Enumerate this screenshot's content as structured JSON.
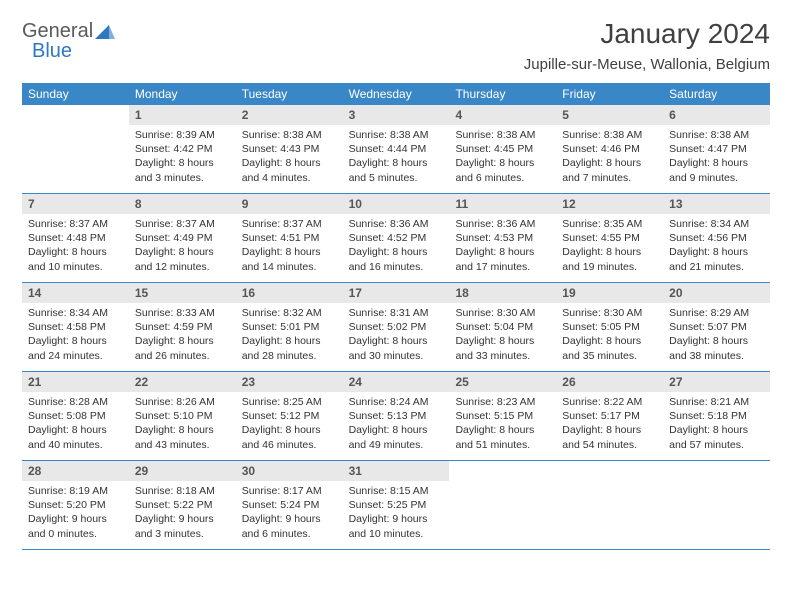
{
  "logo": {
    "part1": "General",
    "part2": "Blue"
  },
  "title": "January 2024",
  "location": "Jupille-sur-Meuse, Wallonia, Belgium",
  "colors": {
    "header_bg": "#3a87c7",
    "header_text": "#ffffff",
    "daynum_bg": "#e8e8e8",
    "daynum_text": "#555555",
    "body_text": "#333333",
    "logo_gray": "#5a5a5a",
    "logo_blue": "#2e78bd",
    "border": "#3a87c7"
  },
  "weekdays": [
    "Sunday",
    "Monday",
    "Tuesday",
    "Wednesday",
    "Thursday",
    "Friday",
    "Saturday"
  ],
  "weeks": [
    [
      {
        "num": "",
        "sunrise": "",
        "sunset": "",
        "daylight": ""
      },
      {
        "num": "1",
        "sunrise": "Sunrise: 8:39 AM",
        "sunset": "Sunset: 4:42 PM",
        "daylight": "Daylight: 8 hours and 3 minutes."
      },
      {
        "num": "2",
        "sunrise": "Sunrise: 8:38 AM",
        "sunset": "Sunset: 4:43 PM",
        "daylight": "Daylight: 8 hours and 4 minutes."
      },
      {
        "num": "3",
        "sunrise": "Sunrise: 8:38 AM",
        "sunset": "Sunset: 4:44 PM",
        "daylight": "Daylight: 8 hours and 5 minutes."
      },
      {
        "num": "4",
        "sunrise": "Sunrise: 8:38 AM",
        "sunset": "Sunset: 4:45 PM",
        "daylight": "Daylight: 8 hours and 6 minutes."
      },
      {
        "num": "5",
        "sunrise": "Sunrise: 8:38 AM",
        "sunset": "Sunset: 4:46 PM",
        "daylight": "Daylight: 8 hours and 7 minutes."
      },
      {
        "num": "6",
        "sunrise": "Sunrise: 8:38 AM",
        "sunset": "Sunset: 4:47 PM",
        "daylight": "Daylight: 8 hours and 9 minutes."
      }
    ],
    [
      {
        "num": "7",
        "sunrise": "Sunrise: 8:37 AM",
        "sunset": "Sunset: 4:48 PM",
        "daylight": "Daylight: 8 hours and 10 minutes."
      },
      {
        "num": "8",
        "sunrise": "Sunrise: 8:37 AM",
        "sunset": "Sunset: 4:49 PM",
        "daylight": "Daylight: 8 hours and 12 minutes."
      },
      {
        "num": "9",
        "sunrise": "Sunrise: 8:37 AM",
        "sunset": "Sunset: 4:51 PM",
        "daylight": "Daylight: 8 hours and 14 minutes."
      },
      {
        "num": "10",
        "sunrise": "Sunrise: 8:36 AM",
        "sunset": "Sunset: 4:52 PM",
        "daylight": "Daylight: 8 hours and 16 minutes."
      },
      {
        "num": "11",
        "sunrise": "Sunrise: 8:36 AM",
        "sunset": "Sunset: 4:53 PM",
        "daylight": "Daylight: 8 hours and 17 minutes."
      },
      {
        "num": "12",
        "sunrise": "Sunrise: 8:35 AM",
        "sunset": "Sunset: 4:55 PM",
        "daylight": "Daylight: 8 hours and 19 minutes."
      },
      {
        "num": "13",
        "sunrise": "Sunrise: 8:34 AM",
        "sunset": "Sunset: 4:56 PM",
        "daylight": "Daylight: 8 hours and 21 minutes."
      }
    ],
    [
      {
        "num": "14",
        "sunrise": "Sunrise: 8:34 AM",
        "sunset": "Sunset: 4:58 PM",
        "daylight": "Daylight: 8 hours and 24 minutes."
      },
      {
        "num": "15",
        "sunrise": "Sunrise: 8:33 AM",
        "sunset": "Sunset: 4:59 PM",
        "daylight": "Daylight: 8 hours and 26 minutes."
      },
      {
        "num": "16",
        "sunrise": "Sunrise: 8:32 AM",
        "sunset": "Sunset: 5:01 PM",
        "daylight": "Daylight: 8 hours and 28 minutes."
      },
      {
        "num": "17",
        "sunrise": "Sunrise: 8:31 AM",
        "sunset": "Sunset: 5:02 PM",
        "daylight": "Daylight: 8 hours and 30 minutes."
      },
      {
        "num": "18",
        "sunrise": "Sunrise: 8:30 AM",
        "sunset": "Sunset: 5:04 PM",
        "daylight": "Daylight: 8 hours and 33 minutes."
      },
      {
        "num": "19",
        "sunrise": "Sunrise: 8:30 AM",
        "sunset": "Sunset: 5:05 PM",
        "daylight": "Daylight: 8 hours and 35 minutes."
      },
      {
        "num": "20",
        "sunrise": "Sunrise: 8:29 AM",
        "sunset": "Sunset: 5:07 PM",
        "daylight": "Daylight: 8 hours and 38 minutes."
      }
    ],
    [
      {
        "num": "21",
        "sunrise": "Sunrise: 8:28 AM",
        "sunset": "Sunset: 5:08 PM",
        "daylight": "Daylight: 8 hours and 40 minutes."
      },
      {
        "num": "22",
        "sunrise": "Sunrise: 8:26 AM",
        "sunset": "Sunset: 5:10 PM",
        "daylight": "Daylight: 8 hours and 43 minutes."
      },
      {
        "num": "23",
        "sunrise": "Sunrise: 8:25 AM",
        "sunset": "Sunset: 5:12 PM",
        "daylight": "Daylight: 8 hours and 46 minutes."
      },
      {
        "num": "24",
        "sunrise": "Sunrise: 8:24 AM",
        "sunset": "Sunset: 5:13 PM",
        "daylight": "Daylight: 8 hours and 49 minutes."
      },
      {
        "num": "25",
        "sunrise": "Sunrise: 8:23 AM",
        "sunset": "Sunset: 5:15 PM",
        "daylight": "Daylight: 8 hours and 51 minutes."
      },
      {
        "num": "26",
        "sunrise": "Sunrise: 8:22 AM",
        "sunset": "Sunset: 5:17 PM",
        "daylight": "Daylight: 8 hours and 54 minutes."
      },
      {
        "num": "27",
        "sunrise": "Sunrise: 8:21 AM",
        "sunset": "Sunset: 5:18 PM",
        "daylight": "Daylight: 8 hours and 57 minutes."
      }
    ],
    [
      {
        "num": "28",
        "sunrise": "Sunrise: 8:19 AM",
        "sunset": "Sunset: 5:20 PM",
        "daylight": "Daylight: 9 hours and 0 minutes."
      },
      {
        "num": "29",
        "sunrise": "Sunrise: 8:18 AM",
        "sunset": "Sunset: 5:22 PM",
        "daylight": "Daylight: 9 hours and 3 minutes."
      },
      {
        "num": "30",
        "sunrise": "Sunrise: 8:17 AM",
        "sunset": "Sunset: 5:24 PM",
        "daylight": "Daylight: 9 hours and 6 minutes."
      },
      {
        "num": "31",
        "sunrise": "Sunrise: 8:15 AM",
        "sunset": "Sunset: 5:25 PM",
        "daylight": "Daylight: 9 hours and 10 minutes."
      },
      {
        "num": "",
        "sunrise": "",
        "sunset": "",
        "daylight": ""
      },
      {
        "num": "",
        "sunrise": "",
        "sunset": "",
        "daylight": ""
      },
      {
        "num": "",
        "sunrise": "",
        "sunset": "",
        "daylight": ""
      }
    ]
  ]
}
